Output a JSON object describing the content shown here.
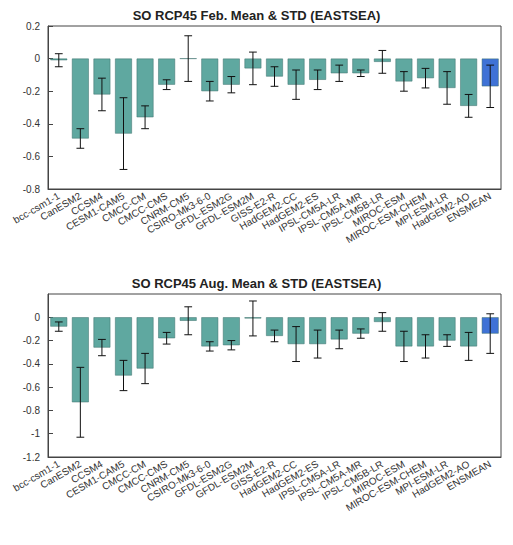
{
  "chart_data": [
    {
      "type": "bar",
      "title": "SO RCP45 Feb. Mean & STD (EASTSEA)",
      "categories": [
        "bcc-csm1-1",
        "CanESM2",
        "CCSM4",
        "CESM1-CAM5",
        "CMCC-CM",
        "CMCC-CMS",
        "CNRM-CM5",
        "CSIRO-Mk3-6-0",
        "GFDL-ESM2G",
        "GFDL-ESM2M",
        "GISS-E2-R",
        "HadGEM2-CC",
        "HadGEM2-ES",
        "IPSL-CM5A-LR",
        "IPSL-CM5A-MR",
        "IPSL-CM5B-LR",
        "MIROC-ESM",
        "MIROC-ESM-CHEM",
        "MPI-ESM-LR",
        "HadGEM2-AO",
        "ENSMEAN"
      ],
      "values": [
        -0.01,
        -0.49,
        -0.22,
        -0.46,
        -0.36,
        -0.16,
        0.0,
        -0.2,
        -0.16,
        -0.06,
        -0.11,
        -0.16,
        -0.13,
        -0.09,
        -0.09,
        -0.02,
        -0.14,
        -0.12,
        -0.18,
        -0.29,
        -0.17
      ],
      "errors": [
        0.04,
        0.06,
        0.1,
        0.22,
        0.07,
        0.03,
        0.14,
        0.06,
        0.05,
        0.1,
        0.06,
        0.09,
        0.06,
        0.05,
        0.02,
        0.07,
        0.06,
        0.06,
        0.1,
        0.07,
        0.13
      ],
      "colors": [
        "#5fa8a0",
        "#5fa8a0",
        "#5fa8a0",
        "#5fa8a0",
        "#5fa8a0",
        "#5fa8a0",
        "#5fa8a0",
        "#5fa8a0",
        "#5fa8a0",
        "#5fa8a0",
        "#5fa8a0",
        "#5fa8a0",
        "#5fa8a0",
        "#5fa8a0",
        "#5fa8a0",
        "#5fa8a0",
        "#5fa8a0",
        "#5fa8a0",
        "#5fa8a0",
        "#5fa8a0",
        "#3f72d6"
      ],
      "ylim": [
        -0.8,
        0.2
      ],
      "yticks": [
        -0.8,
        -0.6,
        -0.4,
        -0.2,
        0,
        0.2
      ],
      "grid": false
    },
    {
      "type": "bar",
      "title": "SO RCP45 Aug. Mean & STD (EASTSEA)",
      "categories": [
        "bcc-csm1-1",
        "CanESM2",
        "CCSM4",
        "CESM1-CAM5",
        "CMCC-CM",
        "CMCC-CMS",
        "CNRM-CM5",
        "CSIRO-Mk3-6-0",
        "GFDL-ESM2G",
        "GFDL-ESM2M",
        "GISS-E2-R",
        "HadGEM2-CC",
        "HadGEM2-ES",
        "IPSL-CM5A-LR",
        "IPSL-CM5A-MR",
        "IPSL-CM5B-LR",
        "MIROC-ESM",
        "MIROC-ESM-CHEM",
        "MPI-ESM-LR",
        "HadGEM2-AO",
        "ENSMEAN"
      ],
      "values": [
        -0.08,
        -0.73,
        -0.26,
        -0.5,
        -0.44,
        -0.18,
        -0.03,
        -0.25,
        -0.24,
        -0.01,
        -0.16,
        -0.23,
        -0.23,
        -0.19,
        -0.14,
        -0.04,
        -0.25,
        -0.25,
        -0.2,
        -0.25,
        -0.14
      ],
      "errors": [
        0.04,
        0.3,
        0.07,
        0.13,
        0.13,
        0.05,
        0.12,
        0.04,
        0.04,
        0.15,
        0.05,
        0.15,
        0.12,
        0.08,
        0.04,
        0.08,
        0.13,
        0.1,
        0.05,
        0.12,
        0.17
      ],
      "colors": [
        "#5fa8a0",
        "#5fa8a0",
        "#5fa8a0",
        "#5fa8a0",
        "#5fa8a0",
        "#5fa8a0",
        "#5fa8a0",
        "#5fa8a0",
        "#5fa8a0",
        "#5fa8a0",
        "#5fa8a0",
        "#5fa8a0",
        "#5fa8a0",
        "#5fa8a0",
        "#5fa8a0",
        "#5fa8a0",
        "#5fa8a0",
        "#5fa8a0",
        "#5fa8a0",
        "#5fa8a0",
        "#3f72d6"
      ],
      "ylim": [
        -1.2,
        0.2
      ],
      "yticks": [
        -1.2,
        -1,
        -0.8,
        -0.6,
        -0.4,
        -0.2,
        0
      ],
      "grid": false
    }
  ]
}
